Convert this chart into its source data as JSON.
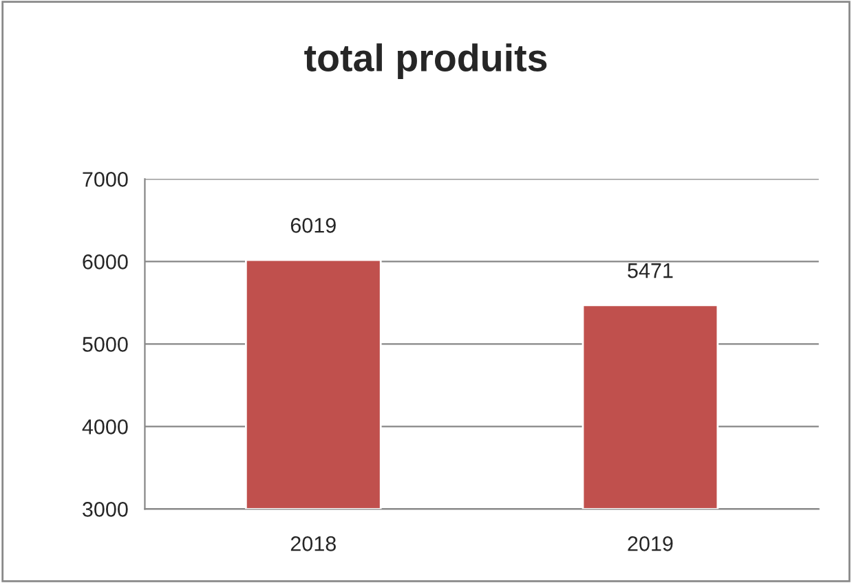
{
  "chart_data": {
    "type": "bar",
    "title": "total produits",
    "categories": [
      "2018",
      "2019"
    ],
    "values": [
      6019,
      5471
    ],
    "color": "#c0504d",
    "ylim": [
      3000,
      7000
    ],
    "yticks": [
      3000,
      4000,
      5000,
      6000,
      7000
    ],
    "grid": "y",
    "data_labels": true,
    "legend": false
  }
}
